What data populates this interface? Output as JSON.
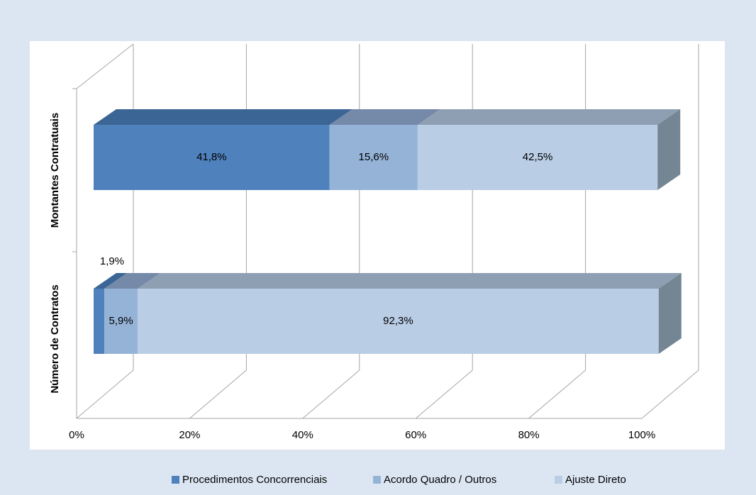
{
  "chart_data": {
    "type": "bar3d",
    "orientation": "horizontal",
    "stacked": "percent",
    "categories": [
      "Montantes Contratuais",
      "Número de Contratos"
    ],
    "series": [
      {
        "name": "Procedimentos Concorrenciais",
        "color": "#4f81bd",
        "top_color": "#3b6594",
        "values": [
          41.8,
          1.9
        ],
        "value_labels": [
          "41,8%",
          "1,9%"
        ]
      },
      {
        "name": "Acordo Quadro / Outros",
        "color": "#95b3d7",
        "top_color": "#7589a8",
        "values": [
          15.6,
          5.9
        ],
        "value_labels": [
          "15,6%",
          "5,9%"
        ]
      },
      {
        "name": "Ajuste Direto",
        "color": "#b9cde5",
        "top_color": "#8e9fb3",
        "values": [
          42.5,
          92.3
        ],
        "value_labels": [
          "42,5%",
          "92,3%"
        ]
      }
    ],
    "xlim": [
      0,
      100
    ],
    "xticks": [
      {
        "value": 0,
        "label": "0%"
      },
      {
        "value": 20,
        "label": "20%"
      },
      {
        "value": 40,
        "label": "40%"
      },
      {
        "value": 60,
        "label": "60%"
      },
      {
        "value": 80,
        "label": "80%"
      },
      {
        "value": 100,
        "label": "100%"
      }
    ],
    "grid": true,
    "legend": "bottom"
  }
}
